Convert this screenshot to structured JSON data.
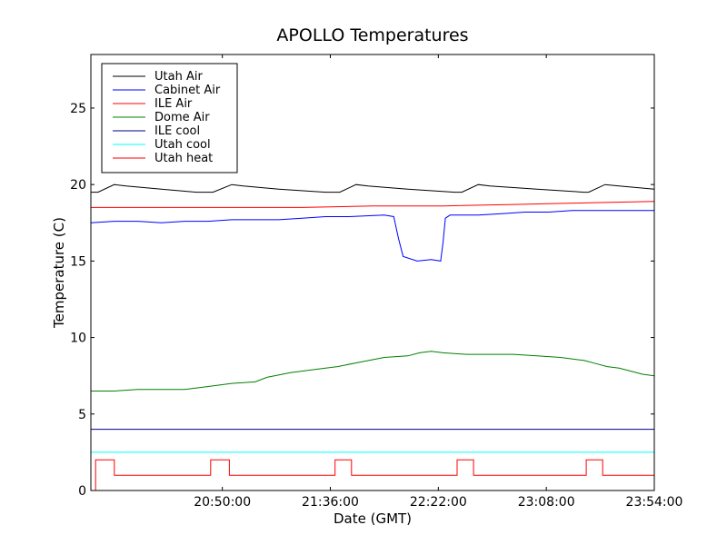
{
  "chart_data": {
    "type": "line",
    "title": "APOLLO Temperatures",
    "xlabel": "Date (GMT)",
    "ylabel": "Temperature (C)",
    "x_unit": "minutes_since_19:54",
    "xlim": [
      0,
      240
    ],
    "ylim": [
      0,
      28.5
    ],
    "x_ticks": [
      {
        "value": 56,
        "label": "20:50:00"
      },
      {
        "value": 102,
        "label": "21:36:00"
      },
      {
        "value": 148,
        "label": "22:22:00"
      },
      {
        "value": 194,
        "label": "23:08:00"
      },
      {
        "value": 240,
        "label": "23:54:00"
      }
    ],
    "y_ticks": [
      0,
      5,
      10,
      15,
      20,
      25
    ],
    "legend_position": "top-left",
    "series": [
      {
        "name": "Utah Air",
        "color": "#000000",
        "points": [
          [
            0,
            19.5
          ],
          [
            3,
            19.5
          ],
          [
            10,
            20.0
          ],
          [
            15,
            19.9
          ],
          [
            30,
            19.7
          ],
          [
            45,
            19.5
          ],
          [
            52,
            19.5
          ],
          [
            60,
            20.0
          ],
          [
            65,
            19.9
          ],
          [
            80,
            19.7
          ],
          [
            100,
            19.5
          ],
          [
            106,
            19.5
          ],
          [
            113,
            20.0
          ],
          [
            118,
            19.9
          ],
          [
            135,
            19.7
          ],
          [
            155,
            19.5
          ],
          [
            158,
            19.5
          ],
          [
            165,
            20.0
          ],
          [
            170,
            19.9
          ],
          [
            190,
            19.7
          ],
          [
            210,
            19.5
          ],
          [
            212,
            19.5
          ],
          [
            219,
            20.0
          ],
          [
            225,
            19.9
          ],
          [
            240,
            19.7
          ]
        ]
      },
      {
        "name": "Cabinet Air",
        "color": "#0000ff",
        "points": [
          [
            0,
            17.5
          ],
          [
            10,
            17.6
          ],
          [
            20,
            17.6
          ],
          [
            30,
            17.5
          ],
          [
            40,
            17.6
          ],
          [
            50,
            17.6
          ],
          [
            60,
            17.7
          ],
          [
            70,
            17.7
          ],
          [
            80,
            17.7
          ],
          [
            90,
            17.8
          ],
          [
            100,
            17.9
          ],
          [
            110,
            17.9
          ],
          [
            125,
            18.0
          ],
          [
            129,
            17.9
          ],
          [
            131,
            16.5
          ],
          [
            133,
            15.3
          ],
          [
            139,
            15.0
          ],
          [
            145,
            15.1
          ],
          [
            149,
            15.0
          ],
          [
            150,
            16.2
          ],
          [
            151,
            17.8
          ],
          [
            153,
            18.0
          ],
          [
            165,
            18.0
          ],
          [
            175,
            18.1
          ],
          [
            185,
            18.2
          ],
          [
            195,
            18.2
          ],
          [
            205,
            18.3
          ],
          [
            215,
            18.3
          ],
          [
            225,
            18.3
          ],
          [
            240,
            18.3
          ]
        ]
      },
      {
        "name": "ILE Air",
        "color": "#ff0000",
        "points": [
          [
            0,
            18.5
          ],
          [
            30,
            18.5
          ],
          [
            60,
            18.5
          ],
          [
            90,
            18.5
          ],
          [
            120,
            18.6
          ],
          [
            150,
            18.6
          ],
          [
            180,
            18.7
          ],
          [
            210,
            18.8
          ],
          [
            240,
            18.9
          ]
        ]
      },
      {
        "name": "Dome Air",
        "color": "#008000",
        "points": [
          [
            0,
            6.5
          ],
          [
            10,
            6.5
          ],
          [
            20,
            6.6
          ],
          [
            30,
            6.6
          ],
          [
            40,
            6.6
          ],
          [
            50,
            6.8
          ],
          [
            60,
            7.0
          ],
          [
            70,
            7.1
          ],
          [
            75,
            7.4
          ],
          [
            85,
            7.7
          ],
          [
            95,
            7.9
          ],
          [
            105,
            8.1
          ],
          [
            115,
            8.4
          ],
          [
            125,
            8.7
          ],
          [
            135,
            8.8
          ],
          [
            140,
            9.0
          ],
          [
            145,
            9.1
          ],
          [
            150,
            9.0
          ],
          [
            160,
            8.9
          ],
          [
            170,
            8.9
          ],
          [
            180,
            8.9
          ],
          [
            190,
            8.8
          ],
          [
            200,
            8.7
          ],
          [
            210,
            8.5
          ],
          [
            215,
            8.3
          ],
          [
            220,
            8.1
          ],
          [
            225,
            8.0
          ],
          [
            230,
            7.8
          ],
          [
            235,
            7.6
          ],
          [
            240,
            7.5
          ]
        ]
      },
      {
        "name": "ILE cool",
        "color": "#000080",
        "points": [
          [
            0,
            4.0
          ],
          [
            240,
            4.0
          ]
        ]
      },
      {
        "name": "Utah cool",
        "color": "#00ffff",
        "points": [
          [
            0,
            2.5
          ],
          [
            240,
            2.5
          ]
        ]
      },
      {
        "name": "Utah heat",
        "color": "#ff0000",
        "points": [
          [
            2,
            0
          ],
          [
            2,
            2
          ],
          [
            10,
            2
          ],
          [
            10,
            1
          ],
          [
            51,
            1
          ],
          [
            51,
            2
          ],
          [
            59,
            2
          ],
          [
            59,
            1
          ],
          [
            104,
            1
          ],
          [
            104,
            2
          ],
          [
            111,
            2
          ],
          [
            111,
            1
          ],
          [
            156,
            1
          ],
          [
            156,
            2
          ],
          [
            163,
            2
          ],
          [
            163,
            1
          ],
          [
            211,
            1
          ],
          [
            211,
            2
          ],
          [
            218,
            2
          ],
          [
            218,
            1
          ],
          [
            240,
            1
          ]
        ]
      }
    ]
  }
}
